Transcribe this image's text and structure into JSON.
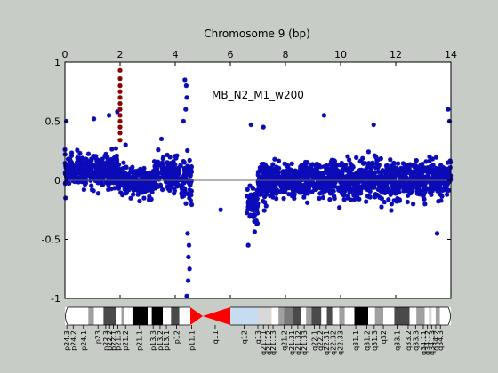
{
  "colors": {
    "background": "#c7ccc6",
    "plot_bg": "#ffffff",
    "points": "#0b0bb8",
    "highlight": "#8b0000",
    "zero_line": "#666666",
    "centromere": "#ff0000",
    "stalk": "#c6dcf0"
  },
  "chart_data": {
    "type": "scatter",
    "title": "Chromosome 9 (bp)",
    "annotation": "MB_N2_M1_w200",
    "xlim": [
      0,
      14
    ],
    "ylim": [
      -1,
      1
    ],
    "x_ticks": [
      "0",
      "2",
      "4",
      "6",
      "8",
      "10",
      "12",
      "14"
    ],
    "y_ticks": [
      "1",
      "0.5",
      "0",
      "-0.5",
      "-1"
    ],
    "zero_line": 0,
    "grid": false,
    "series": [
      {
        "color": "#0b0bb8",
        "marker": "asterisk",
        "segments": [
          {
            "x_start": 0.0,
            "x_end": 2.0,
            "center": 0.08,
            "spread": 0.12
          },
          {
            "x_start": 2.0,
            "x_end": 3.2,
            "center": -0.02,
            "spread": 0.1
          },
          {
            "x_start": 3.2,
            "x_end": 4.2,
            "center": 0.05,
            "spread": 0.12
          },
          {
            "x_start": 4.2,
            "x_end": 4.6,
            "center": 0.0,
            "spread": 0.18
          },
          {
            "x_start": 6.6,
            "x_end": 7.0,
            "center": -0.2,
            "spread": 0.15
          },
          {
            "x_start": 7.0,
            "x_end": 14.0,
            "center": 0.0,
            "spread": 0.14
          }
        ],
        "outliers": [
          {
            "x": 0.05,
            "y": 0.5
          },
          {
            "x": 1.05,
            "y": 0.52
          },
          {
            "x": 1.6,
            "y": 0.55
          },
          {
            "x": 1.9,
            "y": 0.58
          },
          {
            "x": 4.35,
            "y": 0.85
          },
          {
            "x": 4.4,
            "y": 0.8
          },
          {
            "x": 4.42,
            "y": 0.7
          },
          {
            "x": 4.38,
            "y": 0.6
          },
          {
            "x": 4.3,
            "y": 0.5
          },
          {
            "x": 4.45,
            "y": -0.45
          },
          {
            "x": 4.5,
            "y": -0.55
          },
          {
            "x": 4.48,
            "y": -0.65
          },
          {
            "x": 4.52,
            "y": -0.75
          },
          {
            "x": 4.47,
            "y": -0.85
          },
          {
            "x": 4.42,
            "y": -0.98
          },
          {
            "x": 5.65,
            "y": -0.25
          },
          {
            "x": 6.65,
            "y": -0.55
          },
          {
            "x": 6.75,
            "y": 0.47
          },
          {
            "x": 7.2,
            "y": 0.45
          },
          {
            "x": 9.4,
            "y": 0.55
          },
          {
            "x": 11.2,
            "y": 0.47
          },
          {
            "x": 13.9,
            "y": 0.6
          },
          {
            "x": 13.95,
            "y": 0.5
          },
          {
            "x": 13.5,
            "y": -0.45
          },
          {
            "x": 3.5,
            "y": 0.35
          },
          {
            "x": 2.2,
            "y": 0.3
          }
        ]
      },
      {
        "color": "#8b0000",
        "marker": "asterisk",
        "points": [
          {
            "x": 2.0,
            "y": 0.93
          },
          {
            "x": 2.0,
            "y": 0.86
          },
          {
            "x": 2.0,
            "y": 0.8
          },
          {
            "x": 2.0,
            "y": 0.75
          },
          {
            "x": 2.0,
            "y": 0.7
          },
          {
            "x": 2.0,
            "y": 0.65
          },
          {
            "x": 2.0,
            "y": 0.6
          },
          {
            "x": 2.0,
            "y": 0.55
          },
          {
            "x": 2.0,
            "y": 0.5
          },
          {
            "x": 2.0,
            "y": 0.45
          },
          {
            "x": 2.0,
            "y": 0.4
          },
          {
            "x": 2.0,
            "y": 0.34
          }
        ]
      }
    ],
    "ideogram": {
      "bands": [
        {
          "name": "p24.3",
          "x_start": 0.0,
          "x_end": 0.85,
          "stain": "#ffffff",
          "label_x": 0.07
        },
        {
          "name": "p24.2",
          "x_start": 0.85,
          "x_end": 1.05,
          "stain": "#a0a0a0",
          "label_x": 0.3
        },
        {
          "name": "p24.1",
          "x_start": 1.05,
          "x_end": 1.4,
          "stain": "#ffffff",
          "label_x": 0.67
        },
        {
          "name": "p23",
          "x_start": 1.4,
          "x_end": 1.85,
          "stain": "#4a4a4a",
          "label_x": 1.2
        },
        {
          "name": "p22.3",
          "x_start": 1.85,
          "x_end": 2.05,
          "stain": "#ffffff",
          "label_x": 1.48
        },
        {
          "name": "p22.2",
          "x_start": 2.05,
          "x_end": 2.15,
          "stain": "#a0a0a0",
          "label_x": 1.62
        },
        {
          "name": "p22.1",
          "x_start": 2.15,
          "x_end": 2.3,
          "stain": "#ffffff",
          "label_x": 1.76
        },
        {
          "name": "p21.3",
          "x_start": 2.3,
          "x_end": 2.45,
          "stain": "#ffffff",
          "label_x": 1.92
        },
        {
          "name": "p21.2",
          "x_start": 2.45,
          "x_end": 3.0,
          "stain": "#000000",
          "label_x": 2.2
        },
        {
          "name": "p21.1",
          "x_start": 3.0,
          "x_end": 3.15,
          "stain": "#ffffff",
          "label_x": 2.7
        },
        {
          "name": "p13.3",
          "x_start": 3.15,
          "x_end": 3.55,
          "stain": "#000000",
          "label_x": 3.2
        },
        {
          "name": "p13.2",
          "x_start": 3.55,
          "x_end": 3.85,
          "stain": "#ffffff",
          "label_x": 3.45
        },
        {
          "name": "p13.1",
          "x_start": 3.85,
          "x_end": 4.15,
          "stain": "#4a4a4a",
          "label_x": 3.68
        },
        {
          "name": "p12",
          "x_start": 4.15,
          "x_end": 4.55,
          "stain": "#ffffff",
          "label_x": 4.05
        },
        {
          "name": "p11.1",
          "x_start": 4.55,
          "x_end": 5.0,
          "stain": "#ff0000",
          "label_x": 4.6
        },
        {
          "name": "q11",
          "x_start": 5.0,
          "x_end": 6.0,
          "stain": "#ff0000",
          "label_x": 5.45
        },
        {
          "name": "q12",
          "x_start": 6.0,
          "x_end": 7.0,
          "stain": "#c6dcf0",
          "label_x": 6.5
        },
        {
          "name": "q13",
          "x_start": 7.0,
          "x_end": 7.5,
          "stain": "#d8d8d8",
          "label_x": 7.0
        },
        {
          "name": "q21.11",
          "x_start": 7.5,
          "x_end": 7.75,
          "stain": "#ffffff",
          "label_x": 7.2
        },
        {
          "name": "q21.12",
          "x_start": 7.75,
          "x_end": 7.95,
          "stain": "#a0a0a0",
          "label_x": 7.38
        },
        {
          "name": "q21.13",
          "x_start": 7.95,
          "x_end": 8.25,
          "stain": "#7a7a7a",
          "label_x": 7.55
        },
        {
          "name": "q21.2",
          "x_start": 8.25,
          "x_end": 8.55,
          "stain": "#4a4a4a",
          "label_x": 7.95
        },
        {
          "name": "q21.31",
          "x_start": 8.55,
          "x_end": 8.75,
          "stain": "#ffffff",
          "label_x": 8.22
        },
        {
          "name": "q21.32",
          "x_start": 8.75,
          "x_end": 8.95,
          "stain": "#a0a0a0",
          "label_x": 8.45
        },
        {
          "name": "q21.33",
          "x_start": 8.95,
          "x_end": 9.3,
          "stain": "#4a4a4a",
          "label_x": 8.68
        },
        {
          "name": "q22.1",
          "x_start": 9.3,
          "x_end": 9.5,
          "stain": "#ffffff",
          "label_x": 9.05
        },
        {
          "name": "q22.2",
          "x_start": 9.5,
          "x_end": 9.7,
          "stain": "#4a4a4a",
          "label_x": 9.25
        },
        {
          "name": "q22.31",
          "x_start": 9.7,
          "x_end": 9.95,
          "stain": "#ffffff",
          "label_x": 9.48
        },
        {
          "name": "q22.32",
          "x_start": 9.95,
          "x_end": 10.15,
          "stain": "#a0a0a0",
          "label_x": 9.73
        },
        {
          "name": "q22.33",
          "x_start": 10.15,
          "x_end": 10.5,
          "stain": "#ffffff",
          "label_x": 9.98
        },
        {
          "name": "q31.1",
          "x_start": 10.5,
          "x_end": 11.0,
          "stain": "#000000",
          "label_x": 10.55
        },
        {
          "name": "q31.2",
          "x_start": 11.0,
          "x_end": 11.25,
          "stain": "#ffffff",
          "label_x": 10.95
        },
        {
          "name": "q31.3",
          "x_start": 11.25,
          "x_end": 11.55,
          "stain": "#a0a0a0",
          "label_x": 11.22
        },
        {
          "name": "q32",
          "x_start": 11.55,
          "x_end": 11.95,
          "stain": "#ffffff",
          "label_x": 11.55
        },
        {
          "name": "q33.1",
          "x_start": 11.95,
          "x_end": 12.5,
          "stain": "#4a4a4a",
          "label_x": 12.05
        },
        {
          "name": "q33.2",
          "x_start": 12.5,
          "x_end": 12.75,
          "stain": "#ffffff",
          "label_x": 12.45
        },
        {
          "name": "q33.3",
          "x_start": 12.75,
          "x_end": 13.05,
          "stain": "#a0a0a0",
          "label_x": 12.72
        },
        {
          "name": "q34.11",
          "x_start": 13.05,
          "x_end": 13.2,
          "stain": "#ffffff",
          "label_x": 13.0
        },
        {
          "name": "q34.12",
          "x_start": 13.2,
          "x_end": 13.3,
          "stain": "#d8d8d8",
          "label_x": 13.15
        },
        {
          "name": "q34.13",
          "x_start": 13.3,
          "x_end": 13.45,
          "stain": "#ffffff",
          "label_x": 13.3
        },
        {
          "name": "q34.2",
          "x_start": 13.45,
          "x_end": 13.6,
          "stain": "#a0a0a0",
          "label_x": 13.45
        },
        {
          "name": "q34.3",
          "x_start": 13.6,
          "x_end": 14.0,
          "stain": "#ffffff",
          "label_x": 13.62
        }
      ]
    }
  }
}
